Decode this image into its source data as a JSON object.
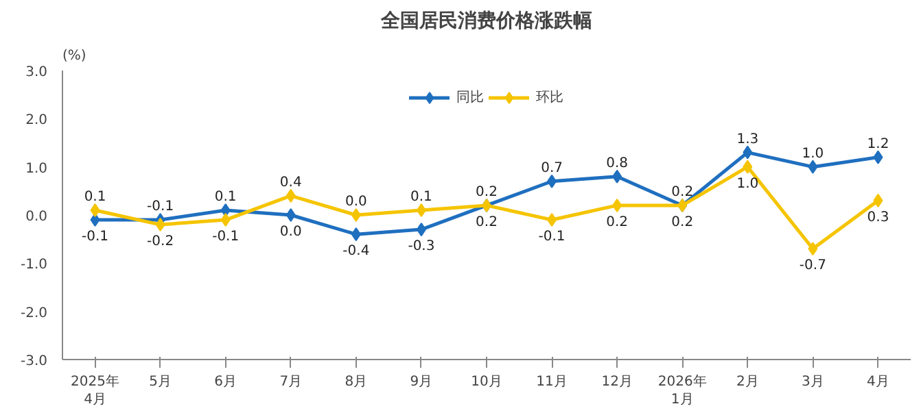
{
  "chart_data": {
    "type": "line",
    "title": "全国居民消费价格涨跌幅",
    "ylabel": "(%)",
    "categories": [
      "2025年\n4月",
      "5月",
      "6月",
      "7月",
      "8月",
      "9月",
      "10月",
      "11月",
      "12月",
      "2026年\n1月",
      "2月",
      "3月",
      "4月"
    ],
    "series": [
      {
        "name": "同比",
        "color": "#1f6fbf",
        "values": [
          -0.1,
          -0.1,
          0.1,
          0.0,
          -0.4,
          -0.3,
          0.2,
          0.7,
          0.8,
          0.2,
          1.3,
          1.0,
          1.2
        ],
        "value_labels": [
          "-0.1",
          "-0.1",
          "0.1",
          "0.0",
          "-0.4",
          "-0.3",
          "0.2",
          "0.7",
          "0.8",
          "0.2",
          "1.3",
          "1.0",
          "1.2"
        ]
      },
      {
        "name": "环比",
        "color": "#f5c400",
        "values": [
          0.1,
          -0.2,
          -0.1,
          0.4,
          0.0,
          0.1,
          0.2,
          -0.1,
          0.2,
          0.2,
          1.0,
          -0.7,
          0.3
        ],
        "value_labels": [
          "0.1",
          "-0.2",
          "-0.1",
          "0.4",
          "0.0",
          "0.1",
          "0.2",
          "-0.1",
          "0.2",
          "0.2",
          "1.0",
          "-0.7",
          "0.3"
        ]
      }
    ],
    "ylim": [
      -3.0,
      3.0
    ],
    "yticks": [
      {
        "value": -3,
        "label": "-3.0"
      },
      {
        "value": -2,
        "label": "-2.0"
      },
      {
        "value": -1,
        "label": "-1.0"
      },
      {
        "value": 0,
        "label": "0.0"
      },
      {
        "value": 1,
        "label": "1.0"
      },
      {
        "value": 2,
        "label": "2.0"
      },
      {
        "value": 3,
        "label": "3.0"
      }
    ],
    "marker": "diamond",
    "line_style": "solid",
    "legend": "top",
    "grid": false
  }
}
